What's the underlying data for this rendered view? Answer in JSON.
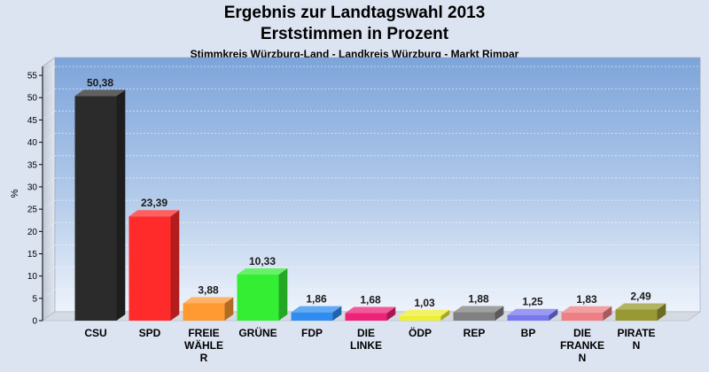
{
  "header": {
    "title_line1": "Ergebnis zur Landtagswahl 2013",
    "title_line2": "Erststimmen in Prozent",
    "subtitle": "Stimmkreis Würzburg-Land - Landkreis Würzburg - Markt Rimpar"
  },
  "chart_data": {
    "type": "bar",
    "title": "Ergebnis zur Landtagswahl 2013 Erststimmen in Prozent",
    "subtitle": "Stimmkreis Würzburg-Land - Landkreis Würzburg - Markt Rimpar",
    "ylabel": "%",
    "xlabel": "",
    "ylim": [
      0,
      57
    ],
    "yticks": [
      0,
      5,
      10,
      15,
      20,
      25,
      30,
      35,
      40,
      45,
      50,
      55
    ],
    "grid": true,
    "categories": [
      "CSU",
      "SPD",
      "FREIE WÄHLER",
      "GRÜNE",
      "FDP",
      "DIE LINKE",
      "ÖDP",
      "REP",
      "BP",
      "DIE FRANKEN",
      "PIRATEN"
    ],
    "category_label_lines": [
      [
        "CSU"
      ],
      [
        "SPD"
      ],
      [
        "FREIE",
        "WÄHLE",
        "R"
      ],
      [
        "GRÜNE"
      ],
      [
        "FDP"
      ],
      [
        "DIE",
        "LINKE"
      ],
      [
        "ÖDP"
      ],
      [
        "REP"
      ],
      [
        "BP"
      ],
      [
        "DIE",
        "FRANKE",
        "N"
      ],
      [
        "PIRATE",
        "N"
      ]
    ],
    "values": [
      50.38,
      23.39,
      3.88,
      10.33,
      1.86,
      1.68,
      1.03,
      1.88,
      1.25,
      1.83,
      2.49
    ],
    "value_labels": [
      "50,38",
      "23,39",
      "3,88",
      "10,33",
      "1,86",
      "1,68",
      "1,03",
      "1,88",
      "1,25",
      "1,83",
      "2,49"
    ],
    "colors": [
      "#2b2b2b",
      "#ff2a2a",
      "#ff9a33",
      "#33ee33",
      "#2f8cf0",
      "#ee2277",
      "#eeee33",
      "#808080",
      "#7777ee",
      "#ee7f84",
      "#999933"
    ]
  }
}
